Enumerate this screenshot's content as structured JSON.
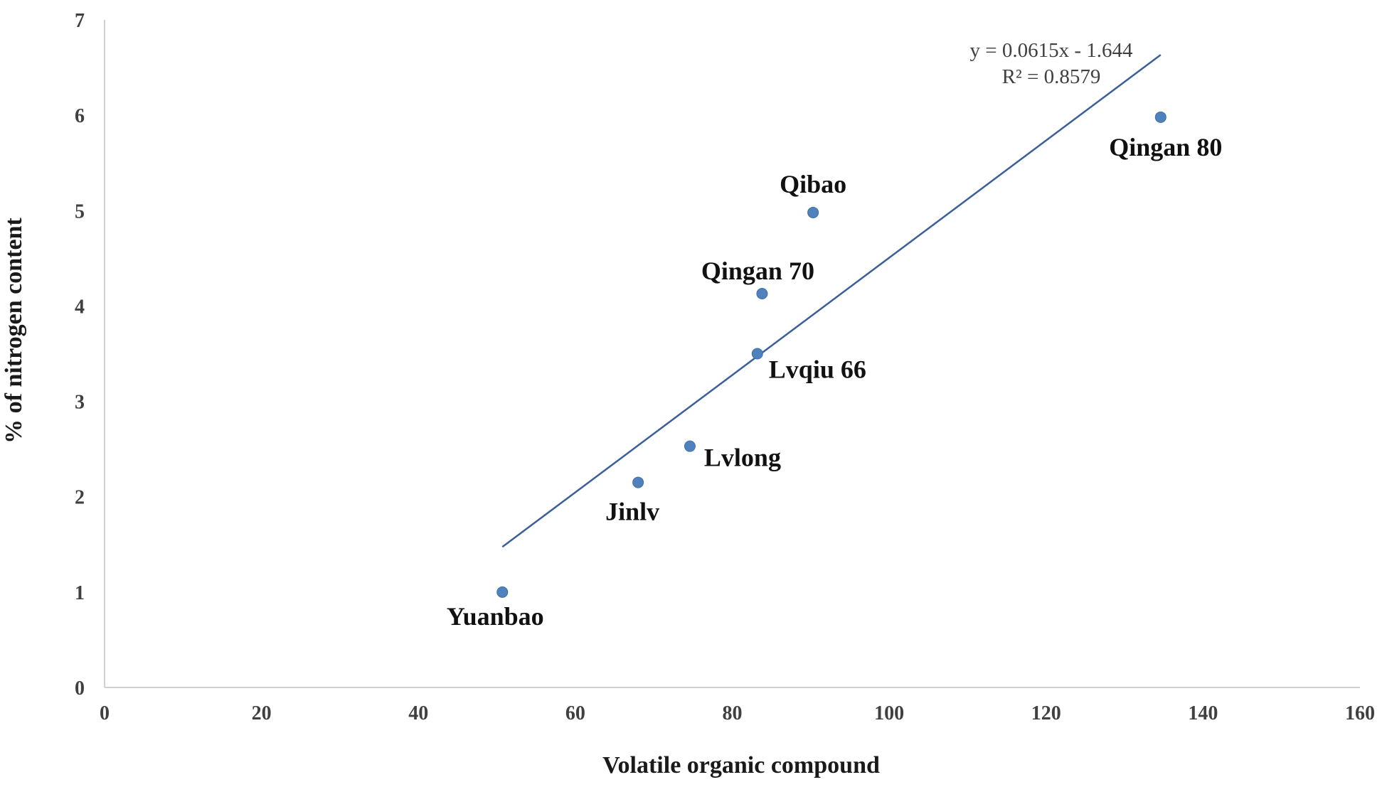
{
  "chart_data": {
    "type": "scatter",
    "title": "",
    "xlabel": "Volatile organic compound",
    "ylabel": "% of nitrogen content",
    "xlim": [
      0,
      160
    ],
    "ylim": [
      0,
      7
    ],
    "x_ticks": [
      0,
      20,
      40,
      60,
      80,
      100,
      120,
      140,
      160
    ],
    "y_ticks": [
      0,
      1,
      2,
      3,
      4,
      5,
      6,
      7
    ],
    "grid": false,
    "legend": "none",
    "marker_color": "#4f81bd",
    "line_color": "#3a5f9a",
    "series": [
      {
        "points": [
          {
            "label": "Yuanbao",
            "x": 50.7,
            "y": 1.0
          },
          {
            "label": "Jinlv",
            "x": 68.0,
            "y": 2.15
          },
          {
            "label": "Lvlong",
            "x": 74.6,
            "y": 2.53
          },
          {
            "label": "Lvqiu 66",
            "x": 83.2,
            "y": 3.5
          },
          {
            "label": "Qingan 70",
            "x": 83.8,
            "y": 4.13
          },
          {
            "label": "Qibao",
            "x": 90.3,
            "y": 4.98
          },
          {
            "label": "Qingan 80",
            "x": 134.6,
            "y": 5.98
          }
        ]
      }
    ],
    "trendline": {
      "slope": 0.0615,
      "intercept": -1.644,
      "x_range": [
        50.7,
        134.6
      ],
      "equation": "y = 0.0615x - 1.644",
      "r_squared": "R² = 0.8579"
    }
  }
}
